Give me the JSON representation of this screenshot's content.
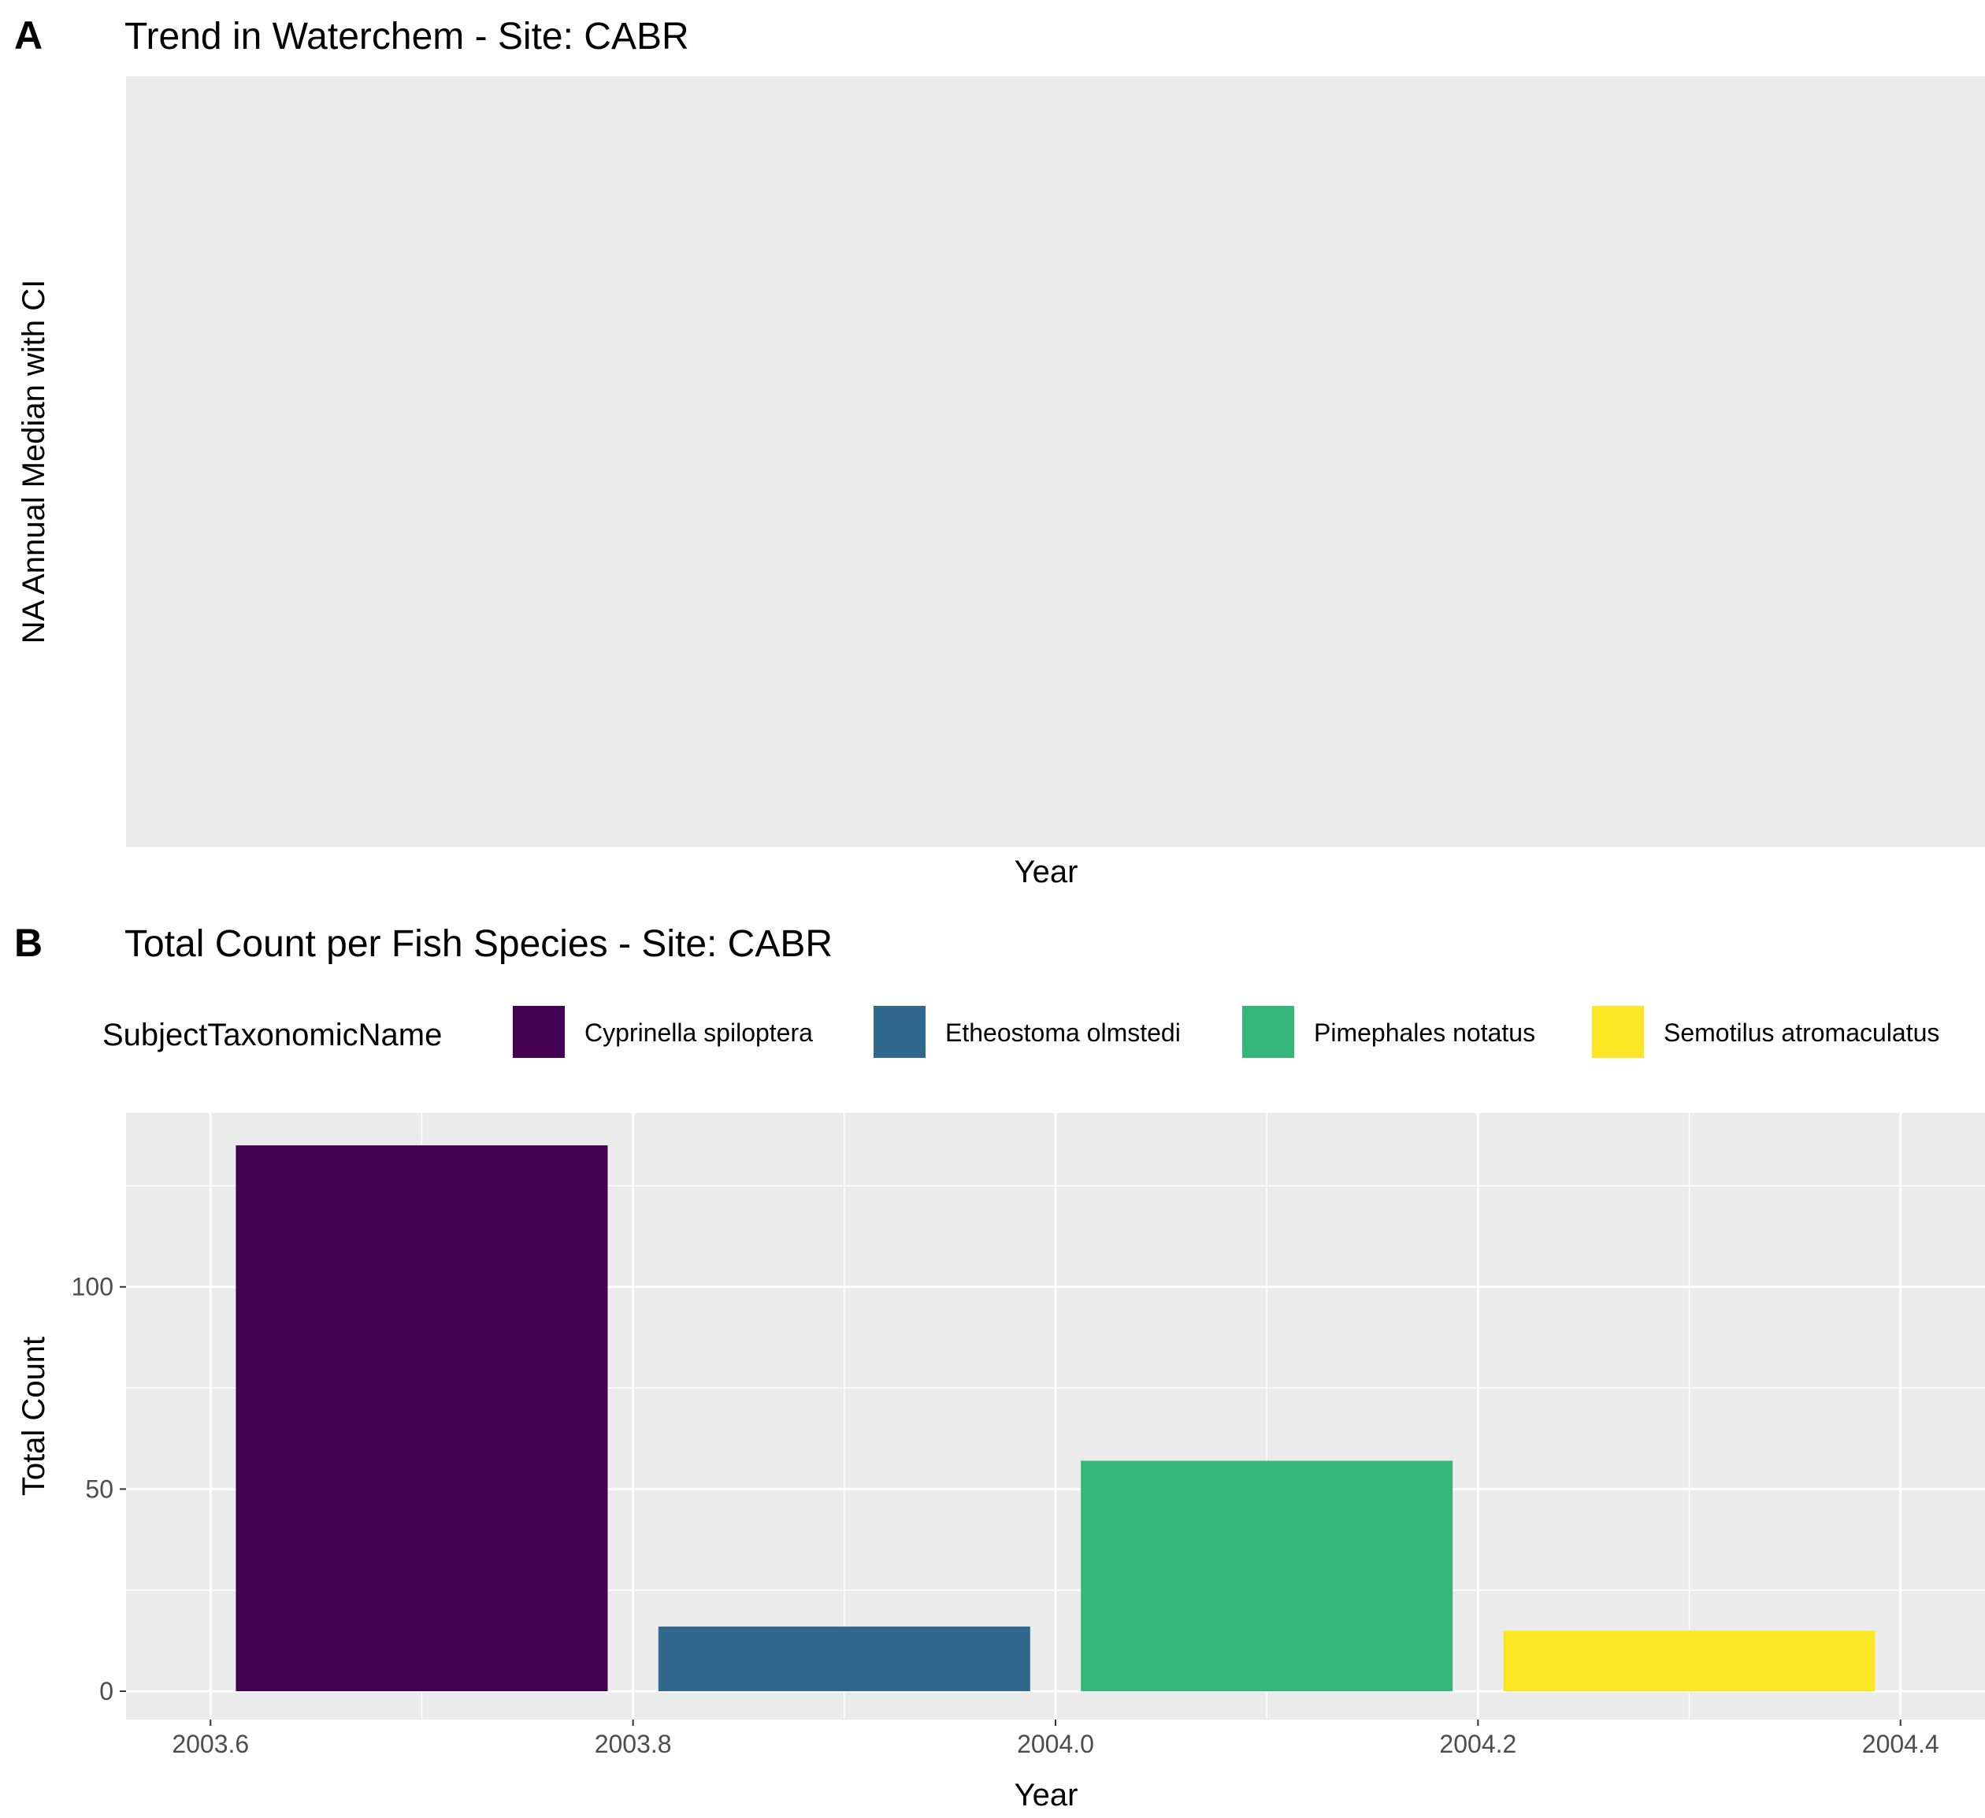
{
  "panel_a": {
    "tag": "A",
    "title": "Trend in Waterchem - Site: CABR",
    "ylabel": "NA Annual Median with CI",
    "xlabel": "Year"
  },
  "panel_b": {
    "tag": "B",
    "title": "Total Count per Fish Species - Site: CABR",
    "xlabel": "Year",
    "ylabel": "Total Count",
    "legend_title": "SubjectTaxonomicName"
  },
  "chart_data": [
    {
      "type": "line",
      "title": "Trend in Waterchem - Site: CABR",
      "xlabel": "Year",
      "ylabel": "NA Annual Median with CI",
      "series": [],
      "note_empty": true
    },
    {
      "type": "bar",
      "title": "Total Count per Fish Species - Site: CABR",
      "xlabel": "Year",
      "ylabel": "Total Count",
      "legend_title": "SubjectTaxonomicName",
      "legend_position": "top",
      "grid": true,
      "xlim": [
        2003.56,
        2004.44
      ],
      "ylim": [
        -7,
        143
      ],
      "x_ticks": [
        2003.6,
        2003.8,
        2004.0,
        2004.2,
        2004.4
      ],
      "x_tick_labels": [
        "2003.6",
        "2003.8",
        "2004.0",
        "2004.2",
        "2004.4"
      ],
      "y_ticks": [
        0,
        50,
        100
      ],
      "y_tick_labels": [
        "0",
        "50",
        "100"
      ],
      "bars": [
        {
          "name": "Cyprinella spiloptera",
          "x_start": 2003.612,
          "x_end": 2003.788,
          "value": 135,
          "color": "#440154"
        },
        {
          "name": "Etheostoma olmstedi",
          "x_start": 2003.812,
          "x_end": 2003.988,
          "value": 16,
          "color": "#31688E"
        },
        {
          "name": "Pimephales notatus",
          "x_start": 2004.012,
          "x_end": 2004.188,
          "value": 57,
          "color": "#35B779"
        },
        {
          "name": "Semotilus atromaculatus",
          "x_start": 2004.212,
          "x_end": 2004.388,
          "value": 15,
          "color": "#FDE725"
        }
      ]
    }
  ],
  "colors": {
    "panel_bg": "#EBEBEB",
    "grid": "#FFFFFF",
    "tick_text": "#4D4D4D"
  }
}
